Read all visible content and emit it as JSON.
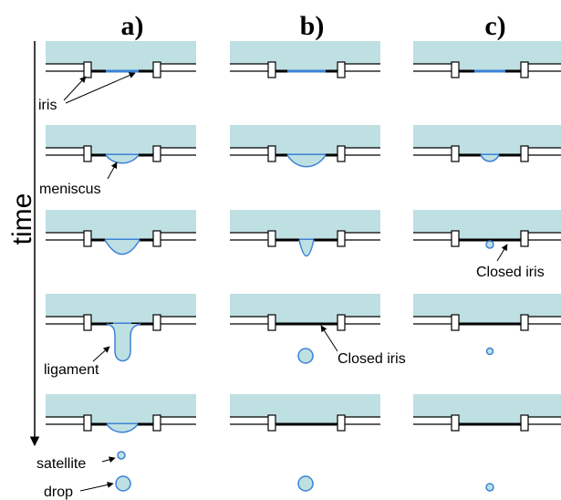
{
  "columns": [
    "a)",
    "b)",
    "c)"
  ],
  "axis_label": "time",
  "annotations": {
    "iris": "iris",
    "meniscus": "meniscus",
    "ligament": "ligament",
    "satellite": "satellite",
    "drop": "drop",
    "closed_iris_b": "Closed iris",
    "closed_iris_c": "Closed iris"
  }
}
